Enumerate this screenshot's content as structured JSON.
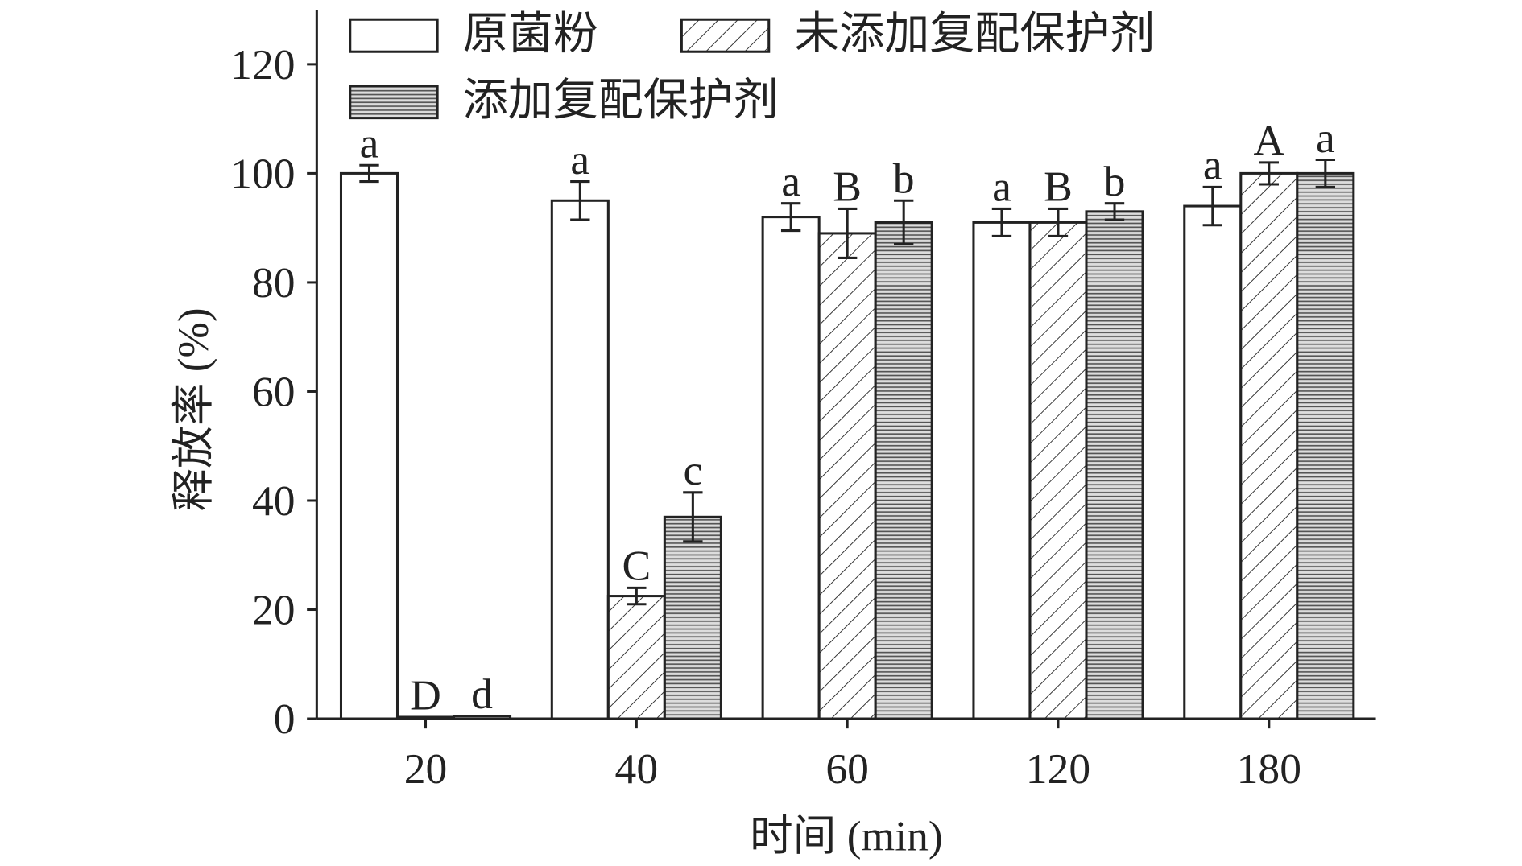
{
  "chart_data": {
    "type": "bar",
    "x_label": "时间 (min)",
    "y_label": "释放率 (%)",
    "categories": [
      "20",
      "40",
      "60",
      "120",
      "180"
    ],
    "ylim": [
      0,
      130
    ],
    "yticks": [
      0,
      20,
      40,
      60,
      80,
      100,
      120
    ],
    "series": [
      {
        "name": "原菌粉",
        "color": "#ffffff",
        "pattern": "none",
        "values": [
          100,
          95,
          92,
          91,
          94
        ],
        "errors": [
          1.5,
          3.5,
          2.5,
          2.5,
          3.5
        ],
        "annotations": [
          "a",
          "a",
          "a",
          "a",
          "a"
        ]
      },
      {
        "name": "未添加复配保护剂",
        "color": "#ffffff",
        "pattern": "hatch",
        "values": [
          0.3,
          22.5,
          89,
          91,
          100
        ],
        "errors": [
          0,
          1.5,
          4.5,
          2.5,
          2
        ],
        "annotations": [
          "D",
          "C",
          "B",
          "B",
          "A"
        ]
      },
      {
        "name": "添加复配保护剂",
        "color": "#bbbbbb",
        "pattern": "lines",
        "values": [
          0.5,
          37,
          91,
          93,
          100
        ],
        "errors": [
          0,
          4.5,
          4,
          1.5,
          2.5
        ],
        "annotations": [
          "d",
          "c",
          "b",
          "b",
          "a"
        ]
      }
    ]
  }
}
